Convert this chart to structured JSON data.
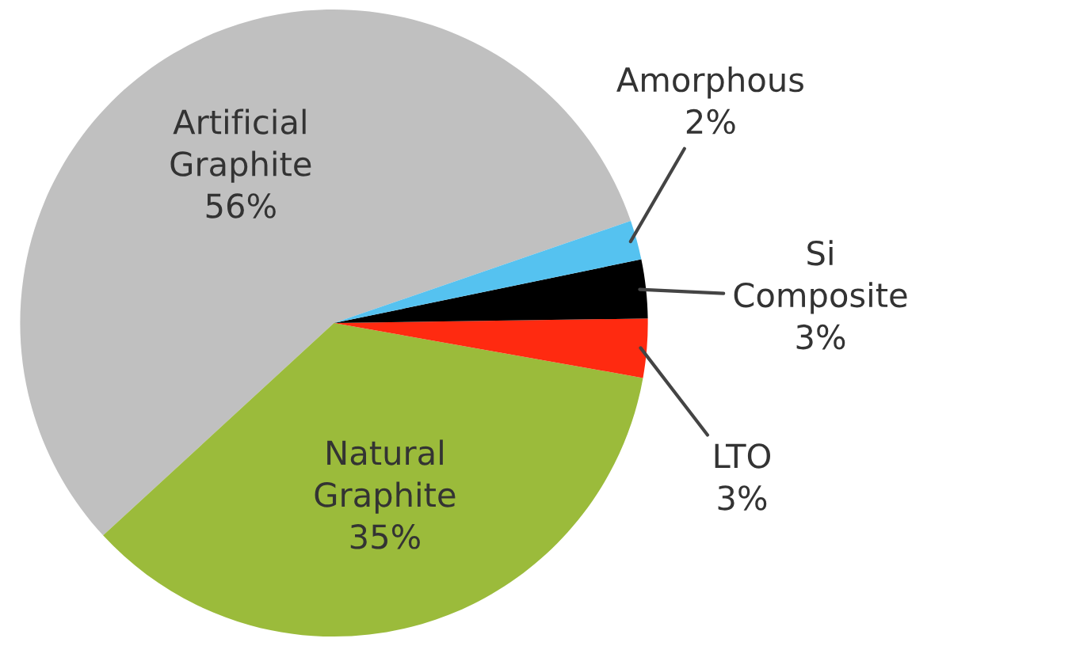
{
  "chart_data": {
    "type": "pie",
    "categories": [
      "Artificial Graphite",
      "Natural Graphite",
      "LTO",
      "Si Composite",
      "Amorphous"
    ],
    "values": [
      56,
      35,
      3,
      3,
      2
    ],
    "value_labels": [
      "56%",
      "35%",
      "3%",
      "3%",
      "2%"
    ],
    "colors": [
      "#c0c0c0",
      "#9bbb3b",
      "#ff2a10",
      "#000000",
      "#55c2f0"
    ],
    "legend": false
  }
}
